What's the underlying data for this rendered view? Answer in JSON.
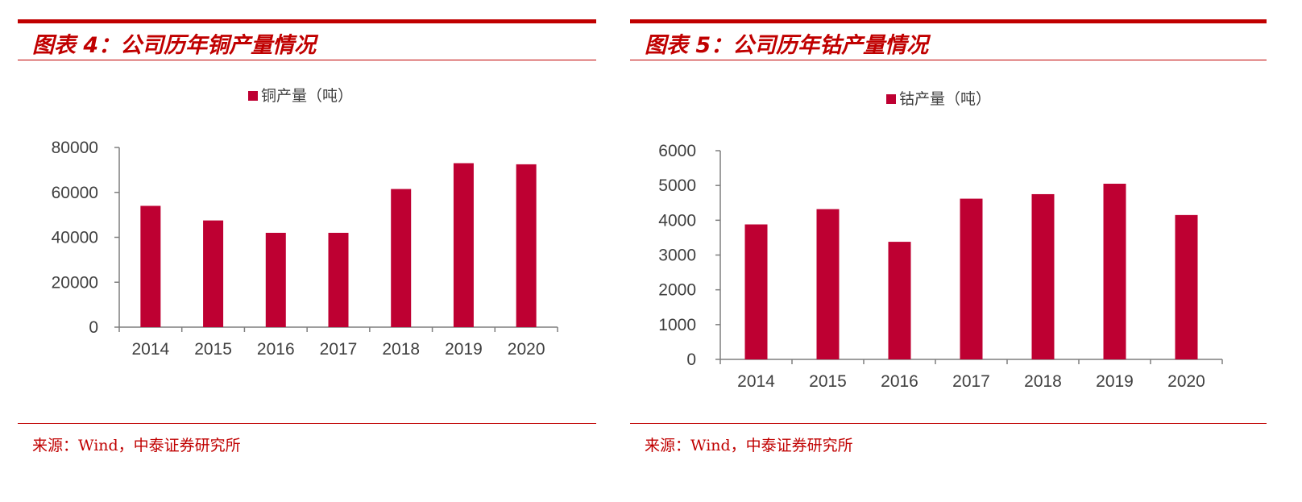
{
  "colors": {
    "accent": "#c00000",
    "bar": "#be0032",
    "axis": "#7f7f7f",
    "text": "#404040"
  },
  "panels": [
    {
      "title": "图表 4：公司历年铜产量情况",
      "source": "来源：Wind，中泰证券研究所"
    },
    {
      "title": "图表 5：公司历年钴产量情况",
      "source": "来源：Wind，中泰证券研究所"
    }
  ],
  "chart_data": [
    {
      "type": "bar",
      "categories": [
        "2014",
        "2015",
        "2016",
        "2017",
        "2018",
        "2019",
        "2020"
      ],
      "series": [
        {
          "name": "铜产量（吨）",
          "values": [
            54000,
            47500,
            42000,
            42000,
            61500,
            73000,
            72500
          ]
        }
      ],
      "ylim": [
        0,
        80000
      ],
      "yticks": [
        0,
        20000,
        40000,
        60000,
        80000
      ],
      "legend": "top-center",
      "grid": false
    },
    {
      "type": "bar",
      "categories": [
        "2014",
        "2015",
        "2016",
        "2017",
        "2018",
        "2019",
        "2020"
      ],
      "series": [
        {
          "name": "钴产量（吨）",
          "values": [
            3880,
            4320,
            3380,
            4620,
            4750,
            5050,
            4150
          ]
        }
      ],
      "ylim": [
        0,
        6000
      ],
      "yticks": [
        0,
        1000,
        2000,
        3000,
        4000,
        5000,
        6000
      ],
      "legend": "top-center",
      "grid": false
    }
  ]
}
